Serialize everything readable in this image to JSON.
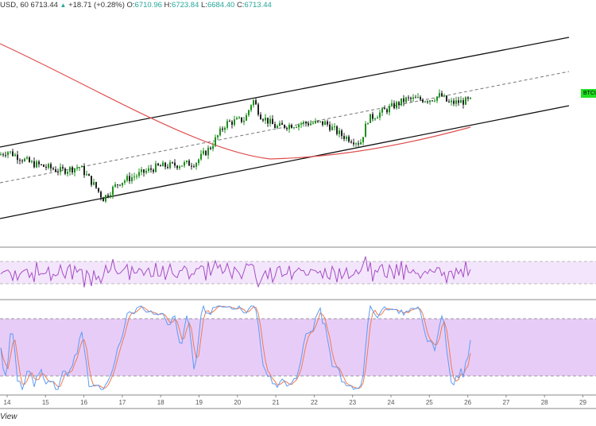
{
  "legend": {
    "symbol": "USD, 60",
    "last": "6713.44",
    "change": "+18.71 (+0.28%)",
    "o_label": "O:",
    "o": "6710.96",
    "h_label": "H:",
    "h": "6723.84",
    "l_label": "L:",
    "l": "6684.40",
    "c_label": "C:",
    "c": "6713.44"
  },
  "price_badge": "BTCU",
  "footer_label": "View",
  "colors": {
    "up": "#26a69a",
    "candle_up": "#1e8f1e",
    "candle_down": "#222222",
    "ma": "#e05050",
    "rsi": "#a64dc4",
    "k": "#5b9cf6",
    "d": "#f07a50",
    "band": "#e8ccf8"
  },
  "chart_data": {
    "type": "candlestick",
    "x_ticks": [
      "14",
      "15",
      "16",
      "17",
      "18",
      "19",
      "20",
      "21",
      "22",
      "23",
      "24",
      "25",
      "26",
      "27",
      "28",
      "29"
    ],
    "price_path": [
      [
        13.8,
        105
      ],
      [
        14.0,
        110
      ],
      [
        14.6,
        95
      ],
      [
        15.4,
        85
      ],
      [
        15.9,
        90
      ],
      [
        16.3,
        65
      ],
      [
        16.5,
        50
      ],
      [
        16.9,
        70
      ],
      [
        17.9,
        90
      ],
      [
        18.9,
        95
      ],
      [
        19.3,
        115
      ],
      [
        19.7,
        145
      ],
      [
        20.2,
        150
      ],
      [
        20.4,
        175
      ],
      [
        20.6,
        155
      ],
      [
        21.0,
        140
      ],
      [
        21.7,
        145
      ],
      [
        22.3,
        145
      ],
      [
        22.7,
        130
      ],
      [
        23.2,
        120
      ],
      [
        23.4,
        150
      ],
      [
        23.8,
        160
      ],
      [
        24.4,
        175
      ],
      [
        25.0,
        175
      ],
      [
        25.3,
        180
      ],
      [
        25.5,
        170
      ],
      [
        26.0,
        173
      ]
    ],
    "indicators": [
      "RSI",
      "Stochastic"
    ]
  }
}
